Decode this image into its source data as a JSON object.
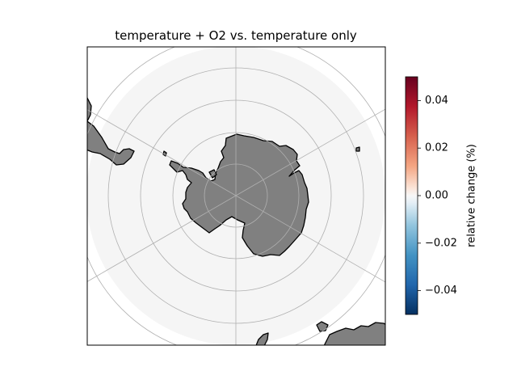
{
  "title": "temperature + O2 vs. temperature only",
  "projection": "south-polar-stereographic",
  "ocean_field_uniform_color": "#f5f5f5",
  "land_color": "#808080",
  "gridline_color": "#b0b0b0",
  "colorbar": {
    "label": "relative change (%)",
    "colormap": "RdBu_r",
    "range": [
      -0.05,
      0.05
    ],
    "ticks": [
      "0.04",
      "0.02",
      "0.00",
      "−0.02",
      "−0.04"
    ],
    "tick_values": [
      0.04,
      0.02,
      0.0,
      -0.02,
      -0.04
    ],
    "colors": {
      "high": "#67001f",
      "mid_high": "#f4a582",
      "mid": "#f7f7f7",
      "mid_low": "#92c5de",
      "low": "#053061"
    }
  },
  "map_features": [
    "antarctica",
    "south-america-tip",
    "australia-edge",
    "new-zealand-south",
    "polar-graticule"
  ]
}
